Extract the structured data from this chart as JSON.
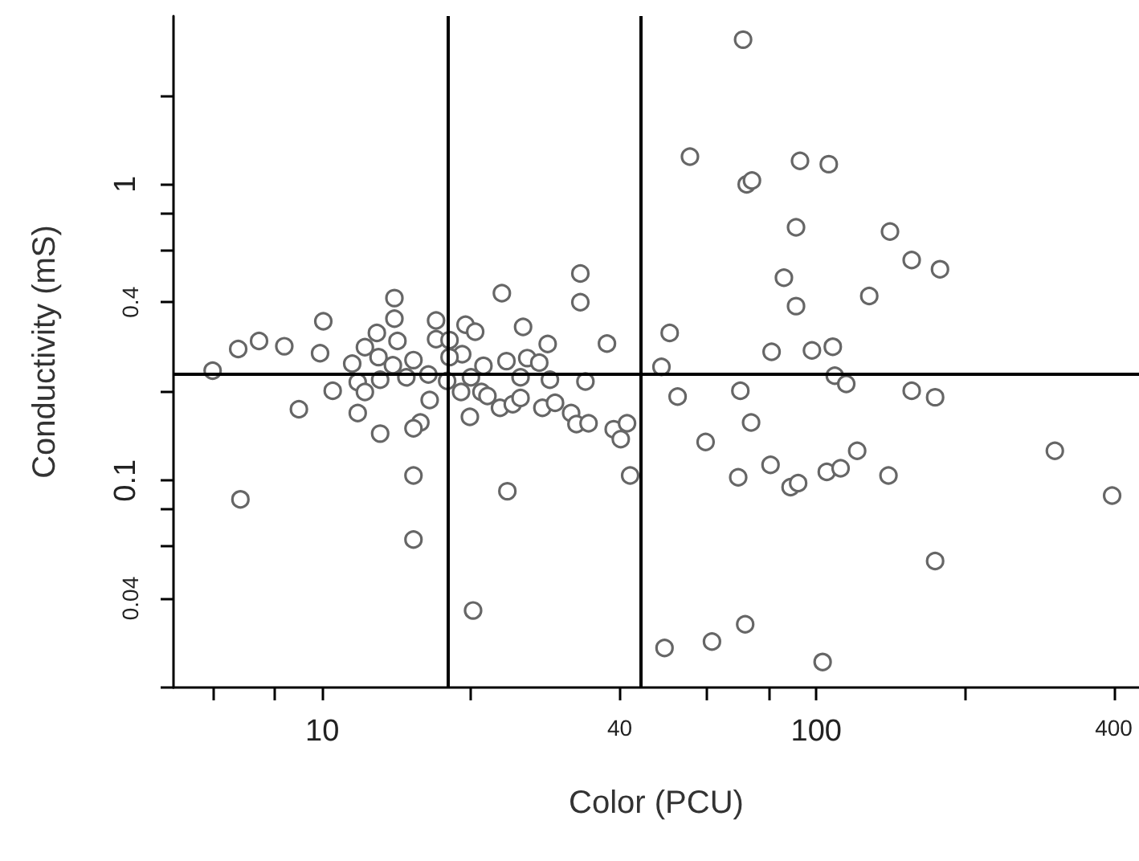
{
  "chart_data": {
    "type": "scatter",
    "xlabel": "Color (PCU)",
    "ylabel": "Conductivity (mS)",
    "log": "xy",
    "marker": "circle",
    "color": "#666666",
    "x": [
      6.0,
      6.76,
      7.45,
      8.38,
      8.97,
      6.83,
      10.05,
      9.9,
      10.5,
      11.5,
      11.8,
      12.2,
      11.8,
      12.2,
      12.9,
      13.0,
      13.1,
      13.1,
      14.0,
      14.0,
      14.2,
      13.9,
      14.8,
      15.3,
      16.4,
      16.5,
      15.8,
      15.3,
      15.3,
      15.3,
      17.0,
      17.0,
      18.1,
      19.5,
      20.4,
      19.2,
      18.1,
      20.0,
      19.1,
      19.9,
      21.0,
      17.9,
      33.3,
      33.3,
      23.1,
      25.5,
      28.6,
      37.7,
      21.2,
      23.6,
      26.0,
      27.5,
      25.2,
      28.9,
      34.1,
      21.6,
      22.9,
      24.3,
      25.2,
      27.9,
      29.6,
      31.9,
      32.7,
      34.6,
      38.9,
      41.4,
      40.2,
      42.0,
      23.7,
      20.2,
      71.1,
      55.5,
      92.7,
      106,
      72.3,
      74.1,
      91,
      141,
      156,
      178,
      86.0,
      91,
      128,
      50.5,
      48.6,
      81.2,
      98,
      108,
      109,
      115,
      52.4,
      70.2,
      156,
      174,
      73.8,
      59.7,
      80.8,
      69.5,
      88.7,
      91.9,
      105,
      112,
      121,
      140,
      304,
      397,
      174,
      49.3,
      61.5,
      71.8,
      103
    ],
    "values": [
      0.235,
      0.278,
      0.296,
      0.284,
      0.174,
      0.0864,
      0.345,
      0.269,
      0.201,
      0.248,
      0.169,
      0.282,
      0.215,
      0.199,
      0.315,
      0.261,
      0.219,
      0.144,
      0.413,
      0.352,
      0.296,
      0.245,
      0.223,
      0.255,
      0.228,
      0.187,
      0.157,
      0.15,
      0.104,
      0.0632,
      0.347,
      0.3,
      0.298,
      0.336,
      0.318,
      0.267,
      0.261,
      0.223,
      0.199,
      0.164,
      0.199,
      0.217,
      0.5,
      0.4,
      0.429,
      0.33,
      0.289,
      0.29,
      0.244,
      0.253,
      0.259,
      0.25,
      0.223,
      0.219,
      0.216,
      0.193,
      0.176,
      0.181,
      0.19,
      0.176,
      0.183,
      0.169,
      0.155,
      0.156,
      0.149,
      0.156,
      0.138,
      0.104,
      0.092,
      0.0364,
      3.08,
      1.24,
      1.2,
      1.17,
      1.0,
      1.03,
      0.716,
      0.693,
      0.555,
      0.517,
      0.484,
      0.388,
      0.42,
      0.315,
      0.242,
      0.272,
      0.275,
      0.283,
      0.226,
      0.212,
      0.192,
      0.201,
      0.201,
      0.191,
      0.157,
      0.135,
      0.113,
      0.1025,
      0.095,
      0.098,
      0.107,
      0.11,
      0.126,
      0.104,
      0.126,
      0.089,
      0.0535,
      0.0272,
      0.0286,
      0.0327,
      0.0244
    ],
    "xlim": [
      5,
      450
    ],
    "ylim": [
      0.02,
      3.7
    ],
    "xticks": [
      {
        "value": 6,
        "label": null
      },
      {
        "value": 8,
        "label": null
      },
      10,
      {
        "value": 20,
        "label": null
      },
      40,
      {
        "value": 60,
        "label": null
      },
      {
        "value": 80,
        "label": null
      },
      100,
      {
        "value": 200,
        "label": null
      },
      400
    ],
    "yticks": [
      {
        "value": 0.02,
        "label": null
      },
      0.04,
      {
        "value": 0.06,
        "label": null
      },
      {
        "value": 0.08,
        "label": null
      },
      0.1,
      {
        "value": 0.2,
        "label": null
      },
      0.4,
      {
        "value": 0.6,
        "label": null
      },
      {
        "value": 0.8,
        "label": null
      },
      1,
      {
        "value": 2,
        "label": null
      }
    ],
    "ref_lines": [
      {
        "axis": "x",
        "value": 18,
        "color": "#000000"
      },
      {
        "axis": "x",
        "value": 44,
        "color": "#000000"
      },
      {
        "axis": "y",
        "value": 0.225,
        "color": "#000000"
      }
    ]
  }
}
